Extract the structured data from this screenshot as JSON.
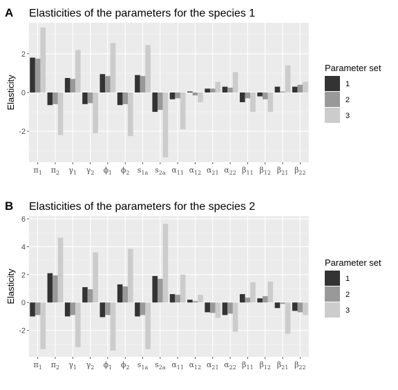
{
  "colors": {
    "panel_bg": "#ebebeb",
    "grid_major": "#ffffff",
    "set1": "#333333",
    "set2": "#999999",
    "set3": "#cccccc"
  },
  "legend": {
    "title": "Parameter set",
    "entries": [
      "1",
      "2",
      "3"
    ]
  },
  "chart_data": [
    {
      "type": "bar",
      "panel_letter": "A",
      "title": "Elasticities of the parameters for the species 1",
      "ylabel": "Elasticity",
      "xlabel": "",
      "ylim": [
        -3.6,
        3.6
      ],
      "yticks": [
        -2,
        0,
        2
      ],
      "grid": true,
      "legend_position": "right",
      "categories": [
        {
          "base": "π",
          "sub": "1"
        },
        {
          "base": "π",
          "sub": "2"
        },
        {
          "base": "γ",
          "sub": "1"
        },
        {
          "base": "γ",
          "sub": "2"
        },
        {
          "base": "ϕ",
          "sub": "1"
        },
        {
          "base": "ϕ",
          "sub": "2"
        },
        {
          "base": "s",
          "sub": "1a"
        },
        {
          "base": "s",
          "sub": "2a"
        },
        {
          "base": "α",
          "sub": "11"
        },
        {
          "base": "α",
          "sub": "12"
        },
        {
          "base": "α",
          "sub": "21"
        },
        {
          "base": "α",
          "sub": "22"
        },
        {
          "base": "β",
          "sub": "11"
        },
        {
          "base": "β",
          "sub": "12"
        },
        {
          "base": "β",
          "sub": "21"
        },
        {
          "base": "β",
          "sub": "22"
        }
      ],
      "series": [
        {
          "name": "1",
          "values": [
            1.8,
            -0.65,
            0.75,
            -0.6,
            0.95,
            -0.65,
            0.9,
            -1.0,
            -0.35,
            0.05,
            0.2,
            0.3,
            -0.5,
            -0.2,
            0.3,
            0.3
          ]
        },
        {
          "name": "2",
          "values": [
            1.75,
            -0.6,
            0.7,
            -0.55,
            0.85,
            -0.6,
            0.85,
            -0.9,
            -0.3,
            -0.15,
            0.2,
            0.25,
            -0.3,
            -0.35,
            0.05,
            0.4
          ]
        },
        {
          "name": "3",
          "values": [
            3.35,
            -2.2,
            2.2,
            -2.1,
            2.55,
            -2.25,
            2.45,
            -3.35,
            -1.9,
            -0.5,
            0.55,
            1.05,
            -1.0,
            -1.0,
            1.4,
            0.55
          ]
        }
      ]
    },
    {
      "type": "bar",
      "panel_letter": "B",
      "title": "Elasticities of the parameters for the species 2",
      "ylabel": "Elasticity",
      "xlabel": "",
      "ylim": [
        -3.9,
        6.2
      ],
      "yticks": [
        -2,
        0,
        2,
        4,
        6
      ],
      "grid": true,
      "legend_position": "right",
      "categories": [
        {
          "base": "π",
          "sub": "1"
        },
        {
          "base": "π",
          "sub": "2"
        },
        {
          "base": "γ",
          "sub": "1"
        },
        {
          "base": "γ",
          "sub": "2"
        },
        {
          "base": "ϕ",
          "sub": "1"
        },
        {
          "base": "ϕ",
          "sub": "2"
        },
        {
          "base": "s",
          "sub": "1a"
        },
        {
          "base": "s",
          "sub": "2a"
        },
        {
          "base": "α",
          "sub": "11"
        },
        {
          "base": "α",
          "sub": "12"
        },
        {
          "base": "α",
          "sub": "21"
        },
        {
          "base": "α",
          "sub": "22"
        },
        {
          "base": "β",
          "sub": "11"
        },
        {
          "base": "β",
          "sub": "12"
        },
        {
          "base": "β",
          "sub": "21"
        },
        {
          "base": "β",
          "sub": "22"
        }
      ],
      "series": [
        {
          "name": "1",
          "values": [
            -1.0,
            2.1,
            -1.0,
            1.1,
            -1.05,
            1.3,
            -1.0,
            1.9,
            0.6,
            0.2,
            -0.7,
            -0.9,
            0.6,
            0.3,
            -0.4,
            -0.6
          ]
        },
        {
          "name": "2",
          "values": [
            -0.9,
            1.95,
            -0.9,
            0.95,
            -0.9,
            1.15,
            -0.9,
            1.7,
            0.55,
            0.1,
            -0.75,
            -0.8,
            0.35,
            0.45,
            -0.1,
            -0.7
          ]
        },
        {
          "name": "3",
          "values": [
            -3.35,
            4.65,
            -3.2,
            3.6,
            -3.45,
            3.85,
            -3.35,
            5.65,
            2.0,
            0.55,
            -1.1,
            -2.1,
            1.45,
            1.5,
            -2.25,
            -0.9
          ]
        }
      ]
    }
  ]
}
